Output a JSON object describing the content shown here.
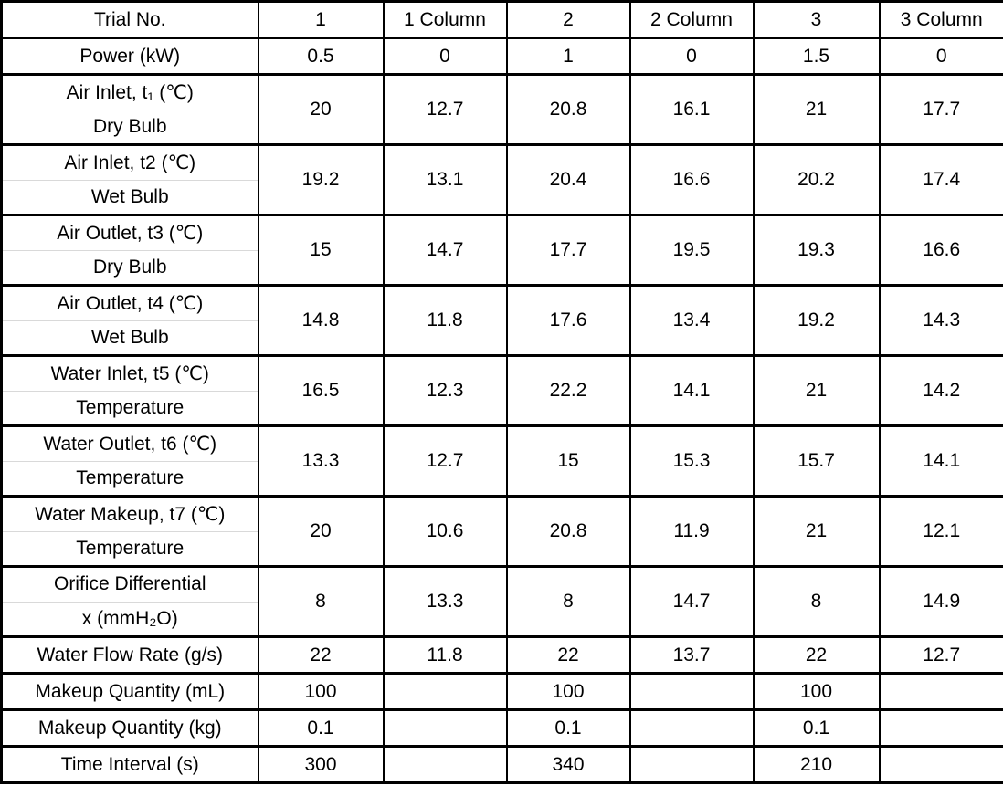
{
  "page": {
    "background_color": "#ffffff",
    "text_color": "#000000",
    "border_color": "#000000",
    "label_divider_color": "#d9d9d9"
  },
  "table": {
    "header_row": {
      "label": "Trial No.",
      "cells": [
        "1",
        "1 Column",
        "2",
        "2 Column",
        "3",
        "3 Column"
      ]
    },
    "rows": [
      {
        "label_lines": [
          "Power (kW)"
        ],
        "values": [
          "0.5",
          "0",
          "1",
          "0",
          "1.5",
          "0"
        ]
      },
      {
        "label_lines": [
          "Air Inlet, t₁ (℃)",
          "Dry Bulb"
        ],
        "values": [
          "20",
          "12.7",
          "20.8",
          "16.1",
          "21",
          "17.7"
        ]
      },
      {
        "label_lines": [
          "Air Inlet, t2 (℃)",
          "Wet Bulb"
        ],
        "values": [
          "19.2",
          "13.1",
          "20.4",
          "16.6",
          "20.2",
          "17.4"
        ]
      },
      {
        "label_lines": [
          "Air Outlet, t3 (℃)",
          "Dry Bulb"
        ],
        "values": [
          "15",
          "14.7",
          "17.7",
          "19.5",
          "19.3",
          "16.6"
        ]
      },
      {
        "label_lines": [
          "Air Outlet, t4 (℃)",
          "Wet Bulb"
        ],
        "values": [
          "14.8",
          "11.8",
          "17.6",
          "13.4",
          "19.2",
          "14.3"
        ]
      },
      {
        "label_lines": [
          "Water Inlet, t5 (℃)",
          "Temperature"
        ],
        "values": [
          "16.5",
          "12.3",
          "22.2",
          "14.1",
          "21",
          "14.2"
        ]
      },
      {
        "label_lines": [
          "Water Outlet, t6 (℃)",
          "Temperature"
        ],
        "values": [
          "13.3",
          "12.7",
          "15",
          "15.3",
          "15.7",
          "14.1"
        ]
      },
      {
        "label_lines": [
          "Water Makeup, t7 (℃)",
          "Temperature"
        ],
        "values": [
          "20",
          "10.6",
          "20.8",
          "11.9",
          "21",
          "12.1"
        ]
      },
      {
        "label_lines": [
          "Orifice Differential",
          "x (mmH₂O)"
        ],
        "values": [
          "8",
          "13.3",
          "8",
          "14.7",
          "8",
          "14.9"
        ]
      },
      {
        "label_lines": [
          "Water Flow Rate (g/s)"
        ],
        "values": [
          "22",
          "11.8",
          "22",
          "13.7",
          "22",
          "12.7"
        ]
      },
      {
        "label_lines": [
          "Makeup Quantity (mL)"
        ],
        "values": [
          "100",
          "",
          "100",
          "",
          "100",
          ""
        ]
      },
      {
        "label_lines": [
          "Makeup Quantity (kg)"
        ],
        "values": [
          "0.1",
          "",
          "0.1",
          "",
          "0.1",
          ""
        ]
      },
      {
        "label_lines": [
          "Time Interval (s)"
        ],
        "values": [
          "300",
          "",
          "340",
          "",
          "210",
          ""
        ]
      }
    ]
  }
}
